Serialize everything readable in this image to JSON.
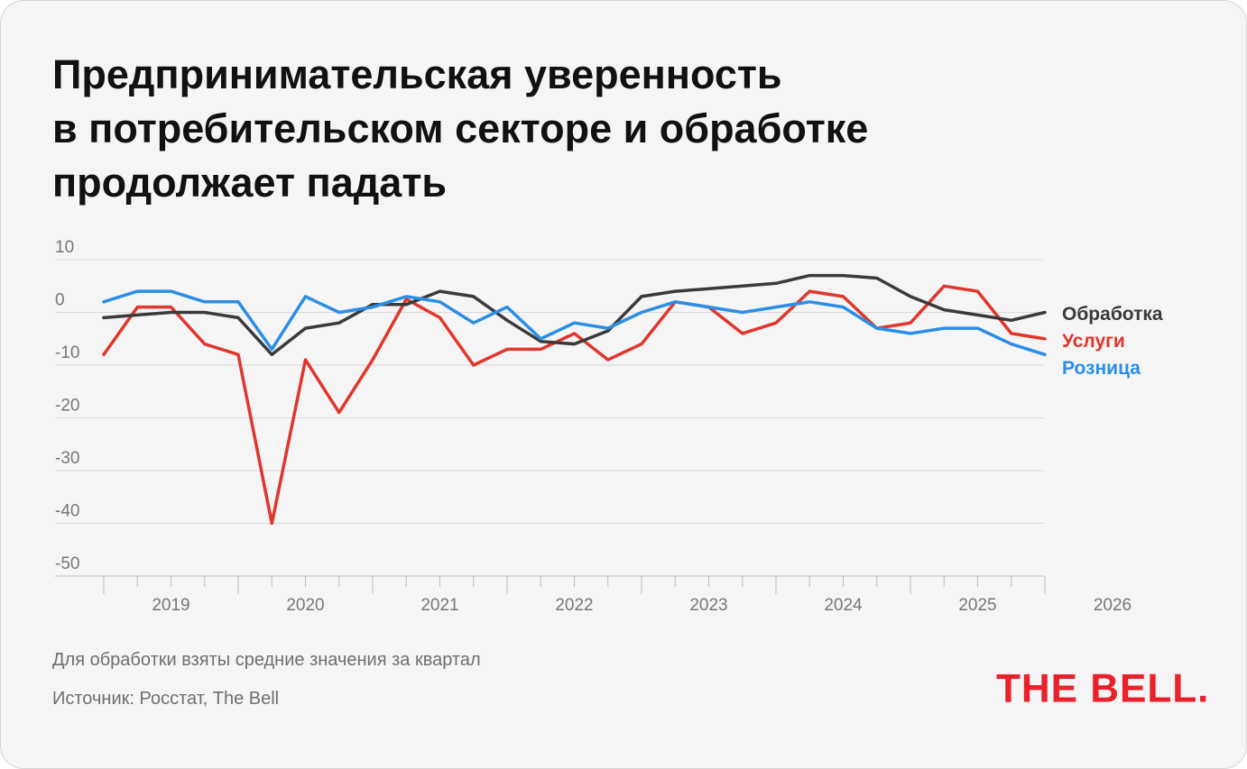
{
  "title_lines": [
    "Предпринимательская уверенность",
    "в потребительском секторе и обработке",
    "продолжает падать"
  ],
  "footnote": "Для обработки взяты средние значения за квартал",
  "source": "Источник: Росстат, The Bell",
  "logo": "THE BELL.",
  "colors": {
    "background": "#f5f5f5",
    "manufacturing": "#3a3a3a",
    "services": "#e0362c",
    "retail": "#2b8ee6",
    "grid": "#d9d9d9",
    "axis_text": "#777777",
    "brand": "#e8212b"
  },
  "chart_data": {
    "type": "line",
    "title": "Предпринимательская уверенность в потребительском секторе и обработке продолжает падать",
    "xlabel": "",
    "ylabel": "",
    "ylim": [
      -50,
      10
    ],
    "yticks": [
      10,
      0,
      -10,
      -20,
      -30,
      -40,
      -50
    ],
    "ytick_labels": [
      "10",
      "0",
      "-10",
      "-20",
      "-30",
      "-40",
      "-50"
    ],
    "x": [
      "Q1 2019",
      "Q2 2019",
      "Q3 2019",
      "Q4 2019",
      "Q1 2020",
      "Q2 2020",
      "Q3 2020",
      "Q4 2020",
      "Q1 2021",
      "Q2 2021",
      "Q3 2021",
      "Q4 2021",
      "Q1 2022",
      "Q2 2022",
      "Q3 2022",
      "Q4 2022",
      "Q1 2023",
      "Q2 2023",
      "Q3 2023",
      "Q4 2023",
      "Q1 2024",
      "Q2 2024",
      "Q3 2024",
      "Q4 2024",
      "Q1 2025",
      "Q2 2025",
      "Q3 2025",
      "Q4 2025",
      "Q1 2026"
    ],
    "x_year_labels": [
      "2019",
      "2020",
      "2021",
      "2022",
      "2023",
      "2024",
      "2025",
      "2026"
    ],
    "grid": true,
    "legend": "right end of lines",
    "series": [
      {
        "name": "Обработка",
        "color_key": "manufacturing",
        "values": [
          -1,
          -0.5,
          0,
          0,
          -1,
          -8,
          -3,
          -2,
          1.5,
          1.5,
          4,
          3,
          -1.5,
          -5.5,
          -6,
          -3.5,
          3,
          4,
          4.5,
          5,
          5.5,
          7,
          7,
          6.5,
          3,
          0.5,
          -0.5,
          -1.5,
          0
        ]
      },
      {
        "name": "Услуги",
        "color_key": "services",
        "values": [
          -8,
          1,
          1,
          -6,
          -8,
          -40,
          -9,
          -19,
          -9,
          2.5,
          -1,
          -10,
          -7,
          -7,
          -4,
          -9,
          -6,
          2,
          1,
          -4,
          -2,
          4,
          3,
          -3,
          -2,
          5,
          4,
          -4,
          -5
        ]
      },
      {
        "name": "Розница",
        "color_key": "retail",
        "values": [
          2,
          4,
          4,
          2,
          2,
          -7,
          3,
          0,
          1,
          3,
          2,
          -2,
          1,
          -5,
          -2,
          -3,
          0,
          2,
          1,
          0,
          1,
          2,
          1,
          -3,
          -4,
          -3,
          -3,
          -6,
          -8
        ]
      }
    ]
  }
}
